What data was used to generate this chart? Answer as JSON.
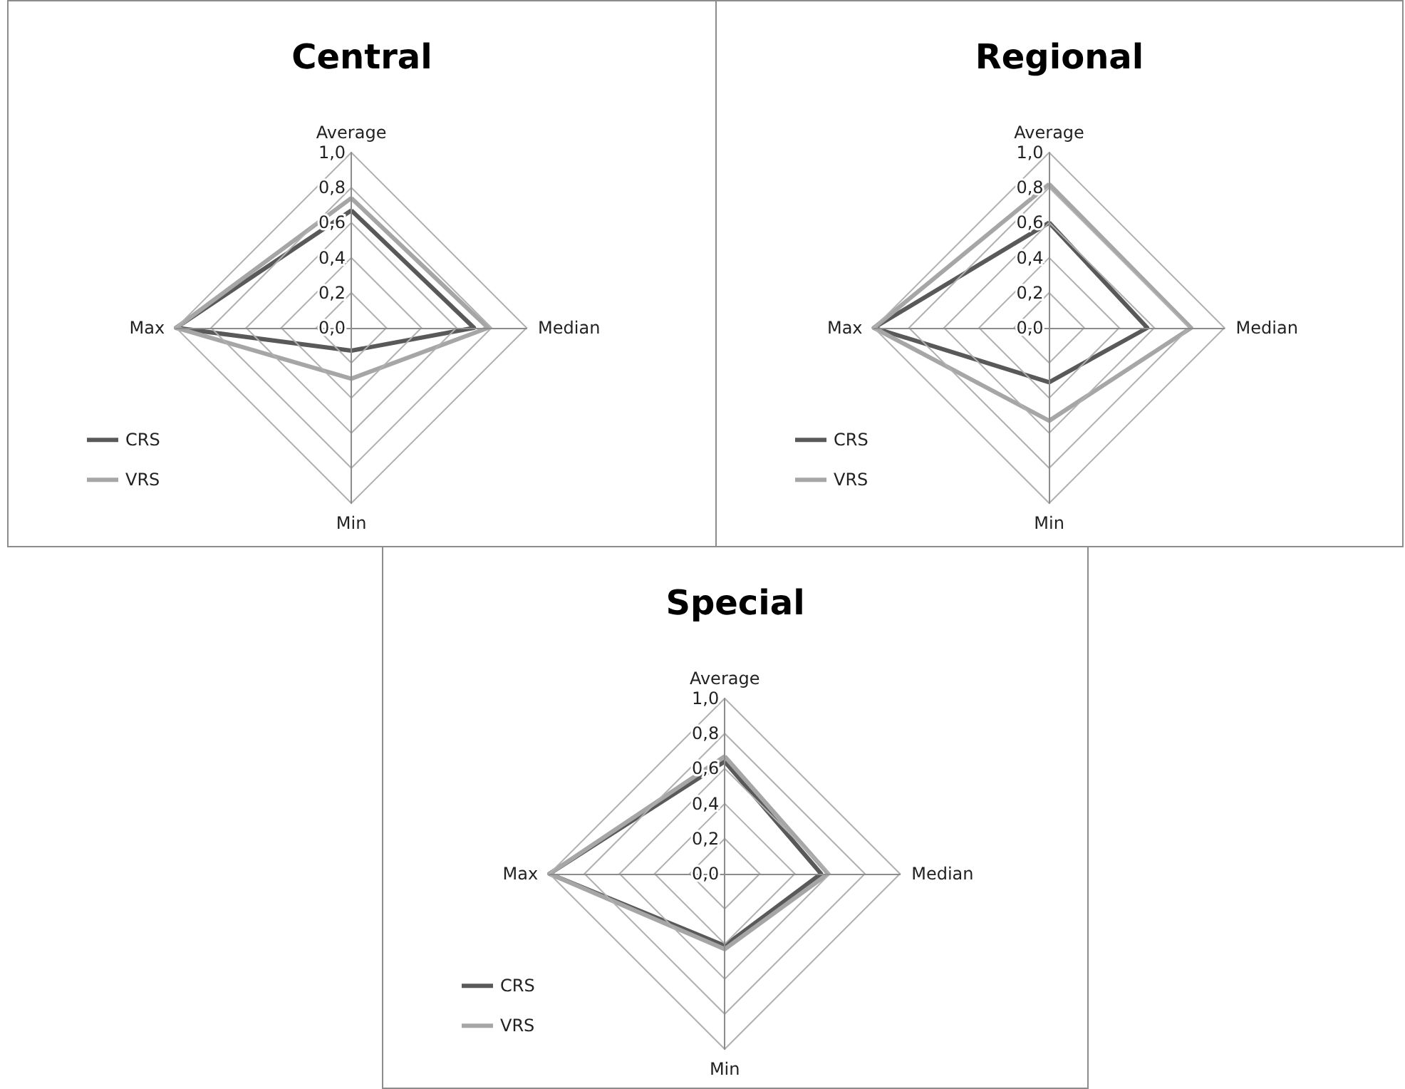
{
  "chart_data": [
    {
      "type": "radar",
      "title": "Central",
      "categories": [
        "Average",
        "Median",
        "Min",
        "Max"
      ],
      "ylim": [
        0,
        1
      ],
      "yticks": [
        {
          "value": 0,
          "label": "0,0"
        },
        {
          "value": 0.2,
          "label": "0,2"
        },
        {
          "value": 0.4,
          "label": "0,4"
        },
        {
          "value": 0.6,
          "label": "0,6"
        },
        {
          "value": 0.8,
          "label": "0,8"
        },
        {
          "value": 1,
          "label": "1,0"
        }
      ],
      "grid": true,
      "legend": "bottom left",
      "marker": "none",
      "series": [
        {
          "name": "CRS",
          "color": "#595959",
          "values": [
            0.67,
            0.7,
            0.13,
            1
          ]
        },
        {
          "name": "VRS",
          "color": "#a6a6a6",
          "values": [
            0.74,
            0.78,
            0.29,
            1
          ]
        }
      ]
    },
    {
      "type": "radar",
      "title": "Regional",
      "categories": [
        "Average",
        "Median",
        "Min",
        "Max"
      ],
      "ylim": [
        0,
        1
      ],
      "yticks": [
        {
          "value": 0,
          "label": "0,0"
        },
        {
          "value": 0.2,
          "label": "0,2"
        },
        {
          "value": 0.4,
          "label": "0,4"
        },
        {
          "value": 0.6,
          "label": "0,6"
        },
        {
          "value": 0.8,
          "label": "0,8"
        },
        {
          "value": 1,
          "label": "1,0"
        }
      ],
      "grid": true,
      "legend": "bottom left",
      "marker": "none",
      "series": [
        {
          "name": "CRS",
          "color": "#595959",
          "values": [
            0.6,
            0.56,
            0.31,
            1
          ]
        },
        {
          "name": "VRS",
          "color": "#a6a6a6",
          "values": [
            0.82,
            0.81,
            0.53,
            1
          ]
        }
      ]
    },
    {
      "type": "radar",
      "title": "Special",
      "categories": [
        "Average",
        "Median",
        "Min",
        "Max"
      ],
      "ylim": [
        0,
        1
      ],
      "yticks": [
        {
          "value": 0,
          "label": "0,0"
        },
        {
          "value": 0.2,
          "label": "0,2"
        },
        {
          "value": 0.4,
          "label": "0,4"
        },
        {
          "value": 0.6,
          "label": "0,6"
        },
        {
          "value": 0.8,
          "label": "0,8"
        },
        {
          "value": 1,
          "label": "1,0"
        }
      ],
      "grid": true,
      "legend": "bottom left",
      "marker": "none",
      "series": [
        {
          "name": "CRS",
          "color": "#595959",
          "values": [
            0.64,
            0.55,
            0.41,
            1
          ]
        },
        {
          "name": "VRS",
          "color": "#a6a6a6",
          "values": [
            0.67,
            0.59,
            0.43,
            1
          ]
        }
      ]
    }
  ]
}
